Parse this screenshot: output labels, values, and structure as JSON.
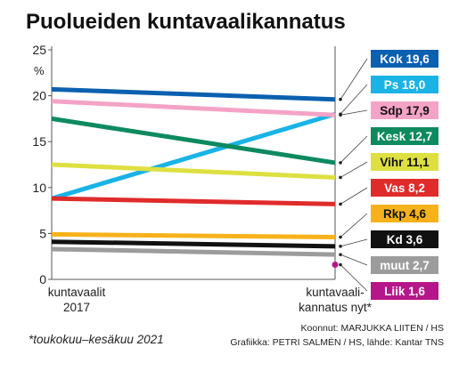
{
  "chart_data": {
    "type": "line",
    "title": "Puolueiden kuntavaalikannatus",
    "ylabel": "%",
    "ylim": [
      0,
      25
    ],
    "yticks": [
      "0",
      "5",
      "10",
      "15",
      "20",
      "25"
    ],
    "categories": [
      {
        "line1": "kuntavaalit",
        "line2": "2017"
      },
      {
        "line1": "kuntavaali-",
        "line2": "kannatus nyt*"
      }
    ],
    "series": [
      {
        "name": "Kok",
        "label": "Kok 19,6",
        "values": [
          20.7,
          19.6
        ],
        "color": "#0b60b0",
        "text_color": "#ffffff"
      },
      {
        "name": "Ps",
        "label": "Ps 18,0",
        "values": [
          8.8,
          18.0
        ],
        "color": "#19b3e6",
        "text_color": "#ffffff"
      },
      {
        "name": "Sdp",
        "label": "Sdp 17,9",
        "values": [
          19.4,
          17.9
        ],
        "color": "#f4a3c6",
        "text_color": "#111111"
      },
      {
        "name": "Kesk",
        "label": "Kesk 12,7",
        "values": [
          17.5,
          12.7
        ],
        "color": "#0d8a5e",
        "text_color": "#ffffff"
      },
      {
        "name": "Vihr",
        "label": "Vihr 11,1",
        "values": [
          12.5,
          11.1
        ],
        "color": "#dde040",
        "text_color": "#111111"
      },
      {
        "name": "Vas",
        "label": "Vas 8,2",
        "values": [
          8.8,
          8.2
        ],
        "color": "#e02b2b",
        "text_color": "#ffffff"
      },
      {
        "name": "Rkp",
        "label": "Rkp 4,6",
        "values": [
          4.9,
          4.6
        ],
        "color": "#f7b21b",
        "text_color": "#111111"
      },
      {
        "name": "Kd",
        "label": "Kd 3,6",
        "values": [
          4.1,
          3.6
        ],
        "color": "#111111",
        "text_color": "#ffffff"
      },
      {
        "name": "muut",
        "label": "muut 2,7",
        "values": [
          3.3,
          2.7
        ],
        "color": "#9c9c9c",
        "text_color": "#ffffff"
      },
      {
        "name": "Liik",
        "label": "Liik 1,6",
        "values": [
          null,
          1.6
        ],
        "color": "#b5178a",
        "text_color": "#ffffff"
      }
    ],
    "grid": false,
    "legend": "right"
  },
  "footnote": "*toukokuu–kesäkuu 2021",
  "credits": [
    "Koonnut: MARJUKKA LIITEN / HS",
    "Grafiikka: PETRI SALMÉN / HS, lähde: Kantar TNS"
  ]
}
